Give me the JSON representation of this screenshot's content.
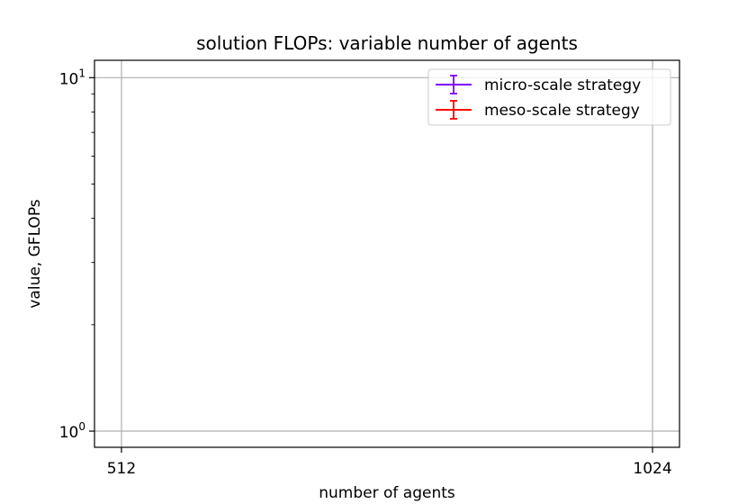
{
  "chart_data": {
    "type": "line",
    "title": "solution FLOPs: variable number of agents",
    "xlabel": "number of agents",
    "ylabel": "value, GFLOPs",
    "x_ticks": [
      512,
      1024
    ],
    "xlim": [
      486,
      1050
    ],
    "y_scale": "log",
    "ylim": [
      0.9,
      11.2
    ],
    "y_ticks": [
      {
        "value": 1,
        "base": "10",
        "exp": "0"
      },
      {
        "value": 10,
        "base": "10",
        "exp": "1"
      }
    ],
    "grid": true,
    "legend_position": "top-right",
    "series": [
      {
        "name": "micro-scale strategy",
        "color": "#7f00ff",
        "errorbars": true,
        "points": []
      },
      {
        "name": "meso-scale strategy",
        "color": "#ff0000",
        "errorbars": true,
        "points": []
      }
    ]
  }
}
